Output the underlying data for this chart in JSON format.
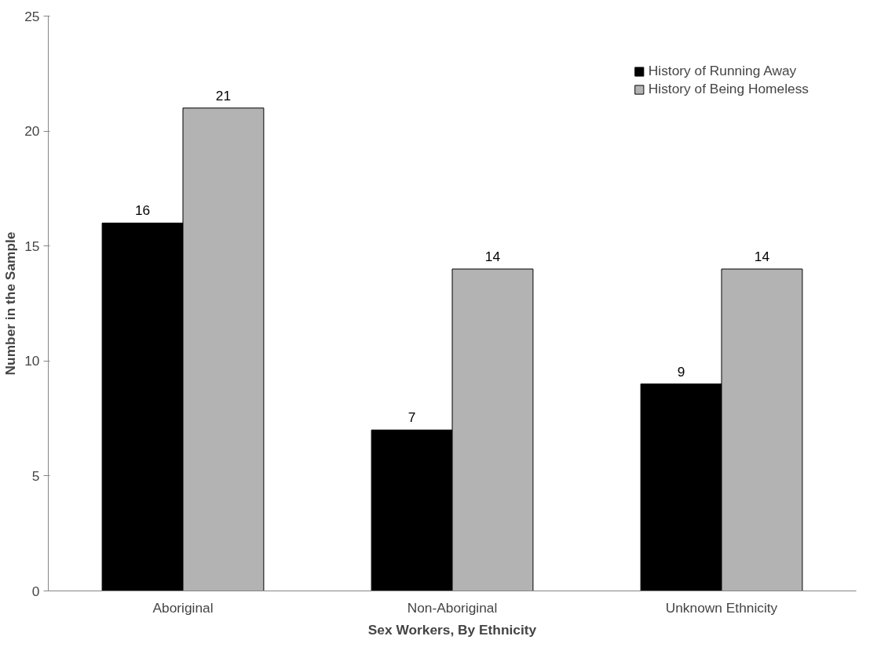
{
  "chart_data": {
    "type": "bar",
    "xlabel": "Sex Workers, By Ethnicity",
    "ylabel": "Number in the Sample",
    "categories": [
      "Aboriginal",
      "Non-Aboriginal",
      "Unknown Ethnicity"
    ],
    "series": [
      {
        "name": "History of Running Away",
        "color": "#000000",
        "values": [
          16,
          7,
          9
        ]
      },
      {
        "name": "History of Being Homeless",
        "color": "#b3b3b3",
        "values": [
          21,
          14,
          14
        ]
      }
    ],
    "ylim": [
      0,
      25
    ],
    "yticks": [
      0,
      5,
      10,
      15,
      20,
      25
    ],
    "grid": false,
    "legend": "top right",
    "data_labels": true
  }
}
